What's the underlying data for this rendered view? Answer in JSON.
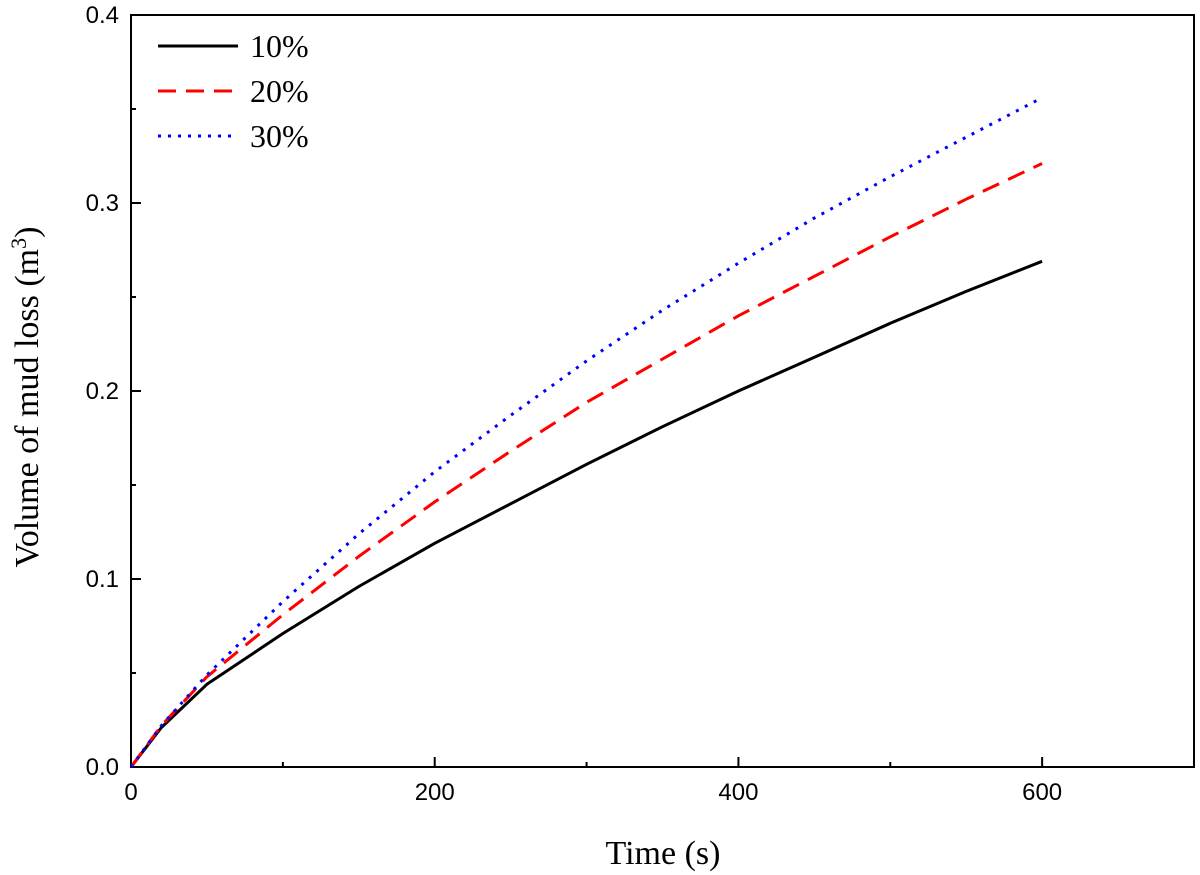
{
  "chart_data": {
    "type": "line",
    "title": "",
    "xlabel": "Time (s)",
    "ylabel": "Volume of mud loss (m",
    "ylabel_superscript": "3",
    "ylabel_close": ")",
    "xlim": [
      0,
      700
    ],
    "ylim": [
      0,
      0.4
    ],
    "x_ticks": [
      0,
      200,
      400,
      600
    ],
    "x_tick_labels": [
      "0",
      "200",
      "400",
      "600"
    ],
    "x_minor_ticks": [
      100,
      300,
      500
    ],
    "y_ticks": [
      0,
      0.1,
      0.2,
      0.3,
      0.4
    ],
    "y_tick_labels": [
      "0.0",
      "0.1",
      "0.2",
      "0.3",
      "0.4"
    ],
    "grid": false,
    "legend_position": "top-left",
    "x": [
      0,
      20,
      50,
      100,
      150,
      200,
      250,
      300,
      350,
      400,
      450,
      500,
      550,
      600
    ],
    "series": [
      {
        "name": "10%",
        "color": "#000000",
        "style": "solid",
        "values": [
          0,
          0.021,
          0.044,
          0.071,
          0.096,
          0.119,
          0.14,
          0.161,
          0.181,
          0.2,
          0.218,
          0.236,
          0.253,
          0.269
        ]
      },
      {
        "name": "20%",
        "color": "#ff0000",
        "style": "dashed",
        "values": [
          0,
          0.022,
          0.048,
          0.081,
          0.112,
          0.141,
          0.168,
          0.194,
          0.217,
          0.24,
          0.261,
          0.282,
          0.302,
          0.321
        ]
      },
      {
        "name": "30%",
        "color": "#0000ff",
        "style": "dotted",
        "values": [
          0,
          0.022,
          0.049,
          0.088,
          0.124,
          0.157,
          0.187,
          0.216,
          0.243,
          0.268,
          0.292,
          0.314,
          0.335,
          0.356
        ]
      }
    ]
  }
}
